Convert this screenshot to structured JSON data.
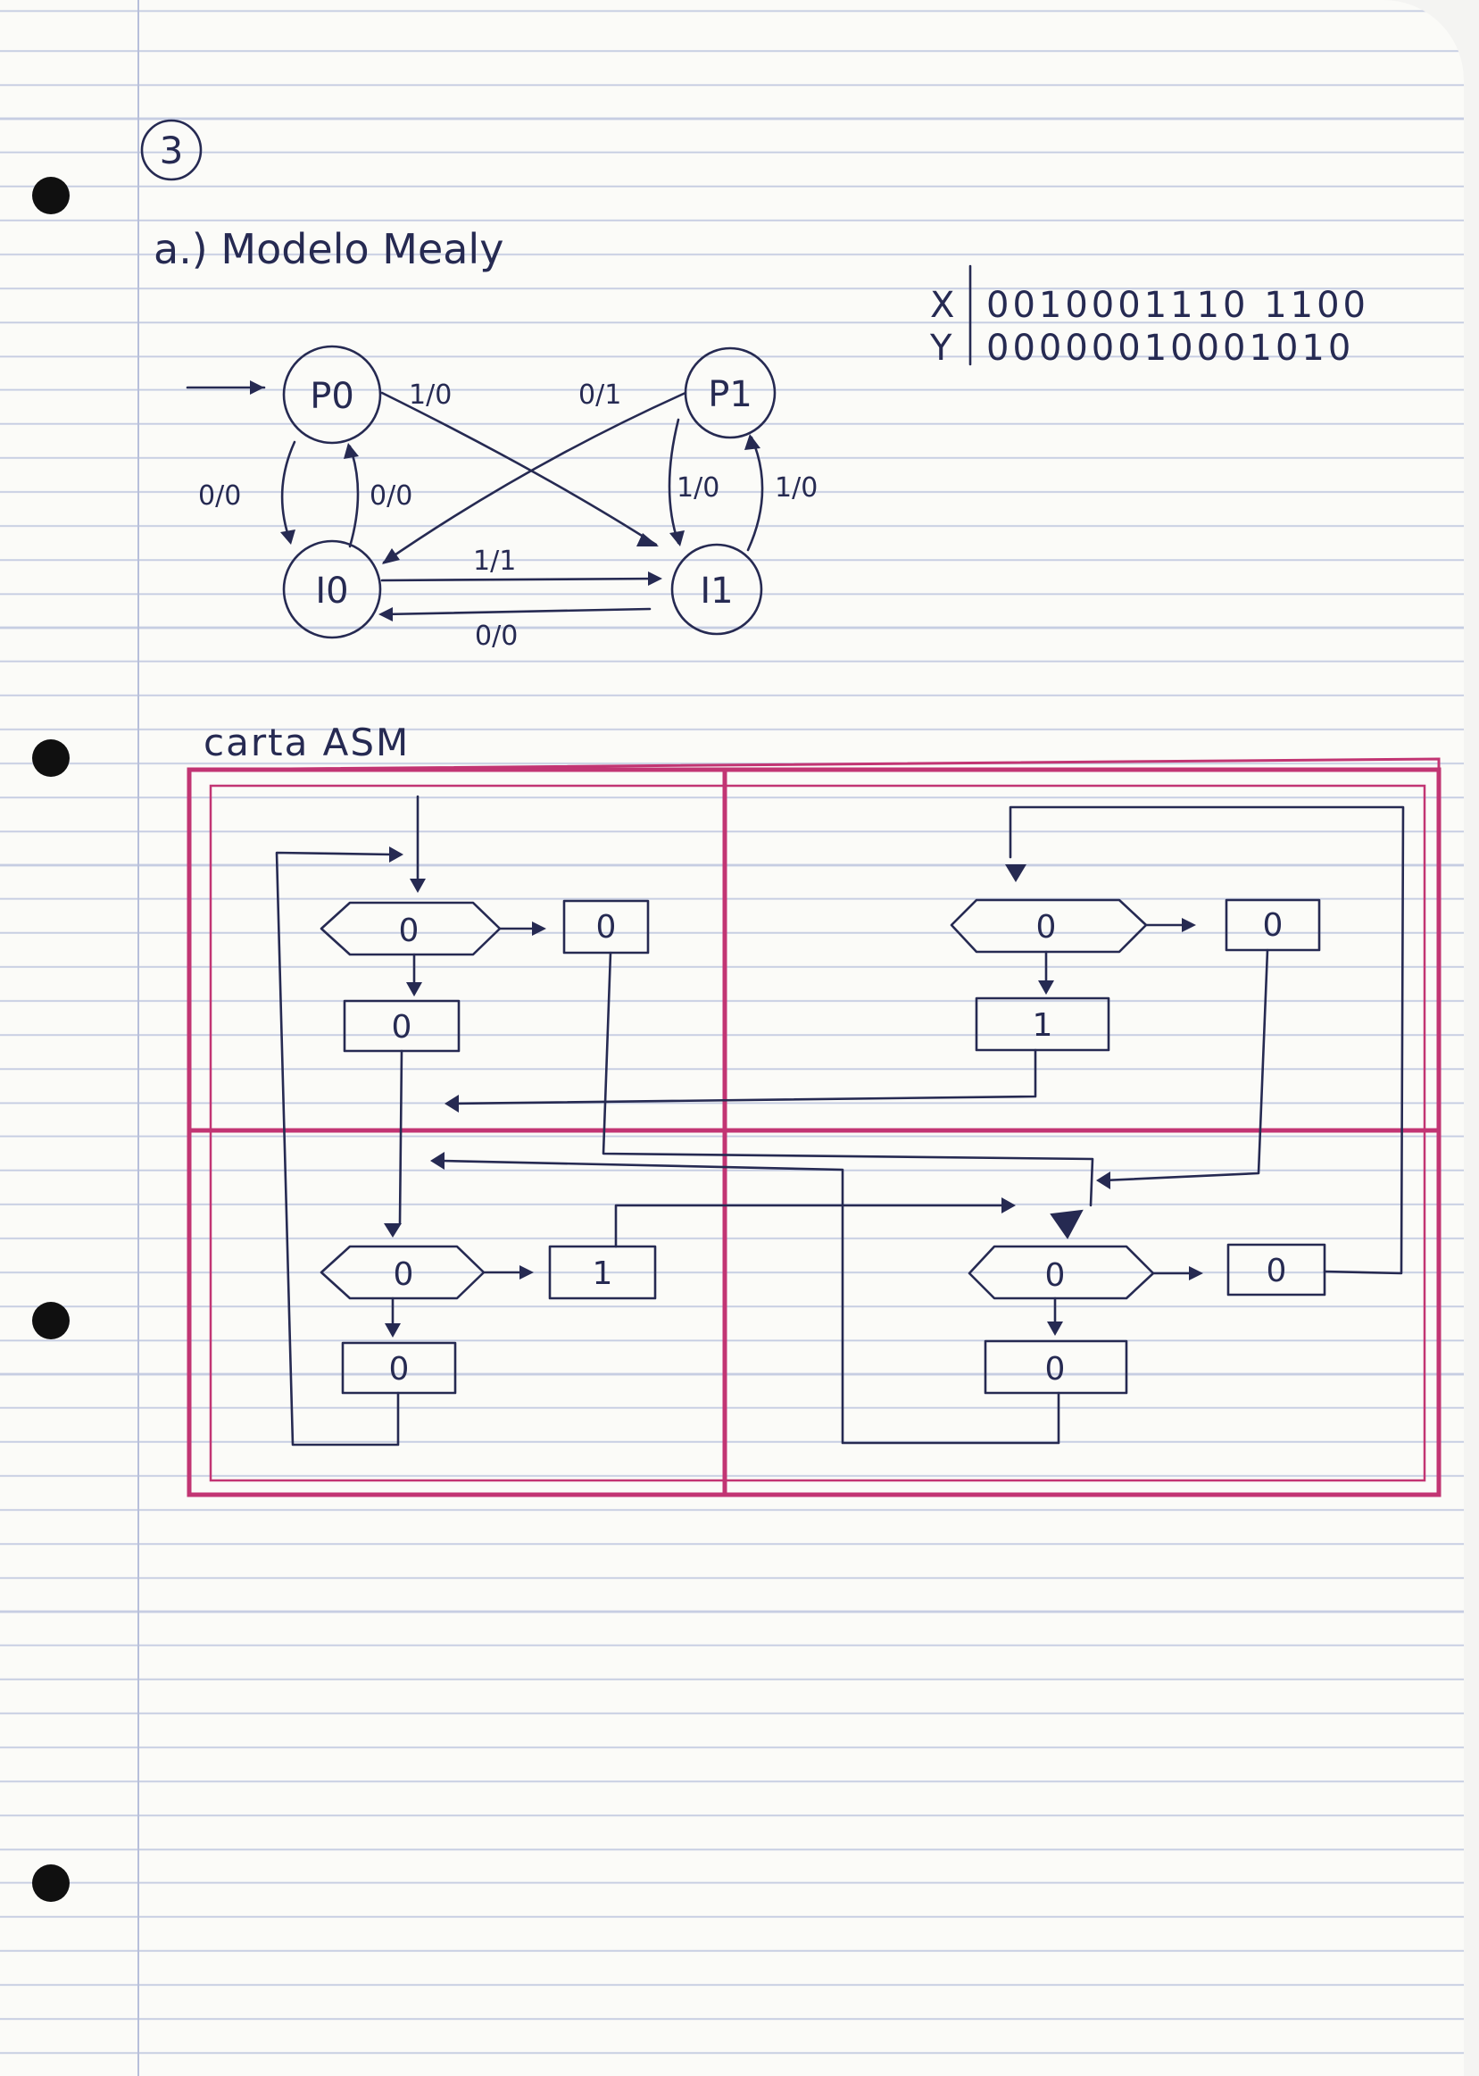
{
  "problem_number": "3",
  "heading": "a.) Modelo Mealy",
  "sequence_table": {
    "rows": [
      {
        "label": "X",
        "values": "0010001110 1100"
      },
      {
        "label": "Y",
        "values": "00000010001010"
      }
    ]
  },
  "state_diagram": {
    "states": [
      "P0",
      "P1",
      "I0",
      "I1"
    ],
    "transitions": [
      {
        "from": "P0",
        "to": "I1",
        "label": "1/0"
      },
      {
        "from": "P1",
        "to": "I0",
        "label": "0/1"
      },
      {
        "from": "P0",
        "to": "I0",
        "label": "0/0"
      },
      {
        "from": "I0",
        "to": "P0",
        "label": "0/0"
      },
      {
        "from": "P1",
        "to": "I1",
        "label": "1/0"
      },
      {
        "from": "I1",
        "to": "P1",
        "label": "1/0"
      },
      {
        "from": "I0",
        "to": "I1",
        "label": "1/1"
      },
      {
        "from": "I1",
        "to": "I0",
        "label": "0/0"
      }
    ]
  },
  "asm_chart": {
    "title": "carta ASM",
    "blocks": [
      {
        "state_output": "0",
        "decision": "0",
        "conditional_output": "0"
      },
      {
        "state_output": "1",
        "decision": "0",
        "conditional_output": "0"
      },
      {
        "state_output": "0",
        "decision": "0",
        "conditional_output": "1"
      },
      {
        "state_output": "0",
        "decision": "0",
        "conditional_output": "0"
      }
    ]
  },
  "colors": {
    "ink": "#262a52",
    "frame": "#c23573",
    "rule_lines": "#c6cde2"
  }
}
